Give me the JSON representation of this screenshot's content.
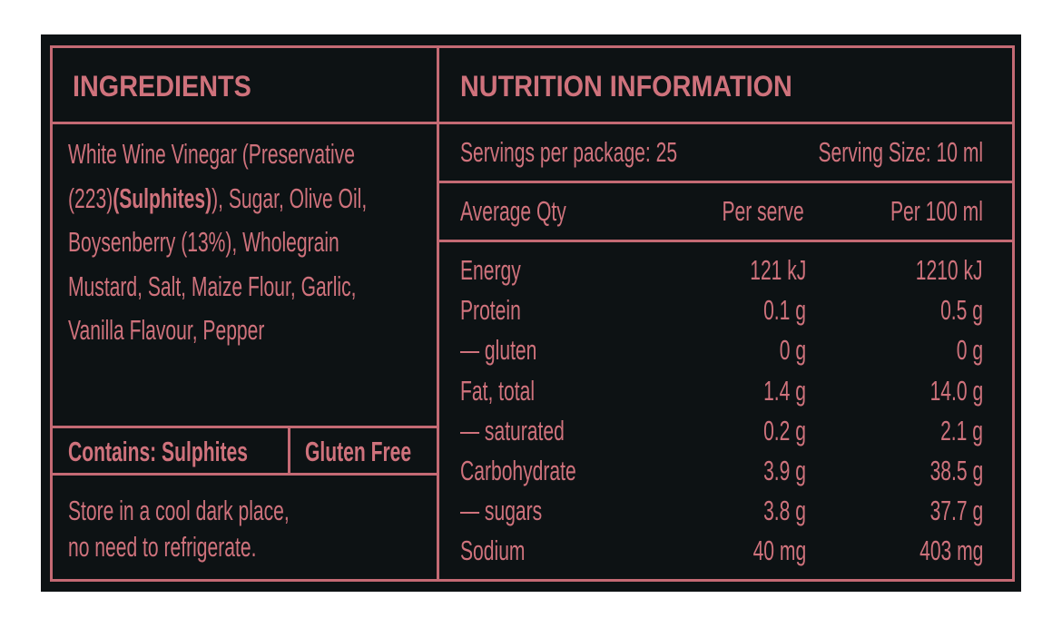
{
  "ingredients": {
    "title": "INGREDIENTS",
    "lines": [
      [
        {
          "text": "White Wine Vinegar (Preservative"
        }
      ],
      [
        {
          "text": "(223)"
        },
        {
          "text": "(Sulphites)",
          "bold": true
        },
        {
          "text": "), Sugar, Olive Oil,"
        }
      ],
      [
        {
          "text": "Boysenberry (13%), Wholegrain"
        }
      ],
      [
        {
          "text": "Mustard, Salt, Maize Flour, Garlic,"
        }
      ],
      [
        {
          "text": "Vanilla Flavour, Pepper"
        }
      ]
    ],
    "contains": "Contains: Sulphites",
    "gluten": "Gluten Free",
    "storage": [
      "Store in a cool dark place,",
      "no need to refrigerate."
    ]
  },
  "nutrition": {
    "title": "NUTRITION INFORMATION",
    "servings_per_package": "Servings per package: 25",
    "serving_size": "Serving Size: 10 ml",
    "columns": [
      "Average Qty",
      "Per serve",
      "Per 100 ml"
    ],
    "rows": [
      [
        "Energy",
        "121 kJ",
        "1210 kJ"
      ],
      [
        "Protein",
        "0.1 g",
        "0.5 g"
      ],
      [
        "— gluten",
        "0 g",
        "0 g"
      ],
      [
        "Fat, total",
        "1.4 g",
        "14.0 g"
      ],
      [
        "— saturated",
        "0.2 g",
        "2.1 g"
      ],
      [
        "Carbohydrate",
        "3.9 g",
        "38.5 g"
      ],
      [
        "— sugars",
        "3.8 g",
        "37.7 g"
      ],
      [
        "Sodium",
        "40 mg",
        "403 mg"
      ]
    ]
  }
}
